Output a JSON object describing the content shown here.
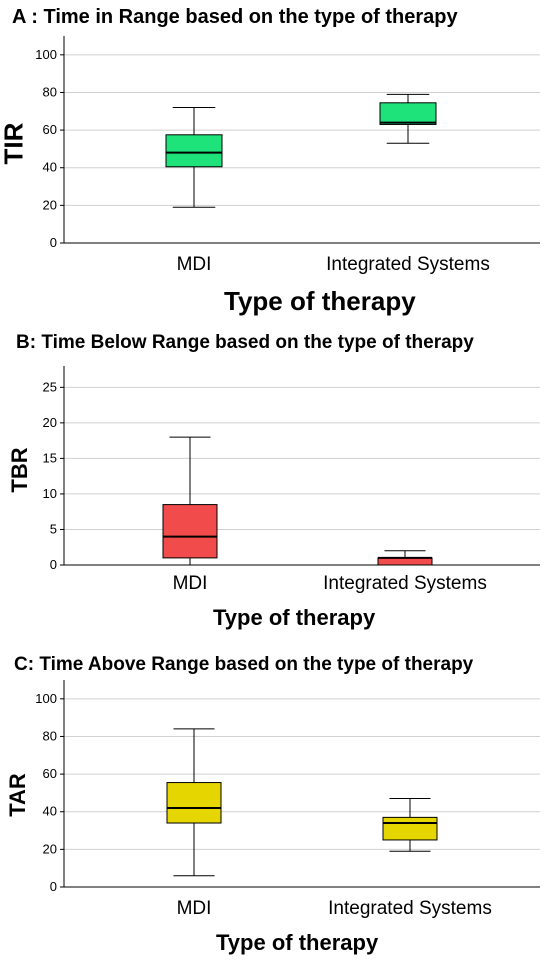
{
  "chart_data": [
    {
      "type": "box",
      "title": "A : Time in Range based on the type of therapy",
      "ylabel": "TIR",
      "xlabel": "Type of therapy",
      "categories": [
        "MDI",
        "Integrated Systems"
      ],
      "yticks": [
        0,
        20,
        40,
        60,
        80,
        100
      ],
      "ylim": [
        0,
        110
      ],
      "grid": true,
      "color": "#1ee27a",
      "boxes": [
        {
          "min": 19,
          "q1": 40.5,
          "median": 48,
          "q3": 57.5,
          "max": 72
        },
        {
          "min": 53,
          "q1": 63,
          "median": 64,
          "q3": 74.5,
          "max": 79
        }
      ]
    },
    {
      "type": "box",
      "title": "B: Time Below Range based on the type of therapy",
      "ylabel": "TBR",
      "xlabel": "Type of therapy",
      "categories": [
        "MDI",
        "Integrated Systems"
      ],
      "yticks": [
        0,
        5,
        10,
        15,
        20,
        25
      ],
      "ylim": [
        0,
        28
      ],
      "grid": true,
      "color": "#f24b4b",
      "boxes": [
        {
          "min": 0,
          "q1": 1,
          "median": 4,
          "q3": 8.5,
          "max": 18
        },
        {
          "min": 0,
          "q1": 0,
          "median": 1,
          "q3": 1,
          "max": 2
        }
      ]
    },
    {
      "type": "box",
      "title": "C: Time Above Range based on the type of therapy",
      "ylabel": "TAR",
      "xlabel": "Type of therapy",
      "categories": [
        "MDI",
        "Integrated Systems"
      ],
      "yticks": [
        0,
        20,
        40,
        60,
        80,
        100
      ],
      "ylim": [
        0,
        110
      ],
      "grid": true,
      "color": "#e6d600",
      "boxes": [
        {
          "min": 6,
          "q1": 34,
          "median": 42,
          "q3": 55.5,
          "max": 84
        },
        {
          "min": 19,
          "q1": 25,
          "median": 34,
          "q3": 37,
          "max": 47
        }
      ]
    }
  ]
}
